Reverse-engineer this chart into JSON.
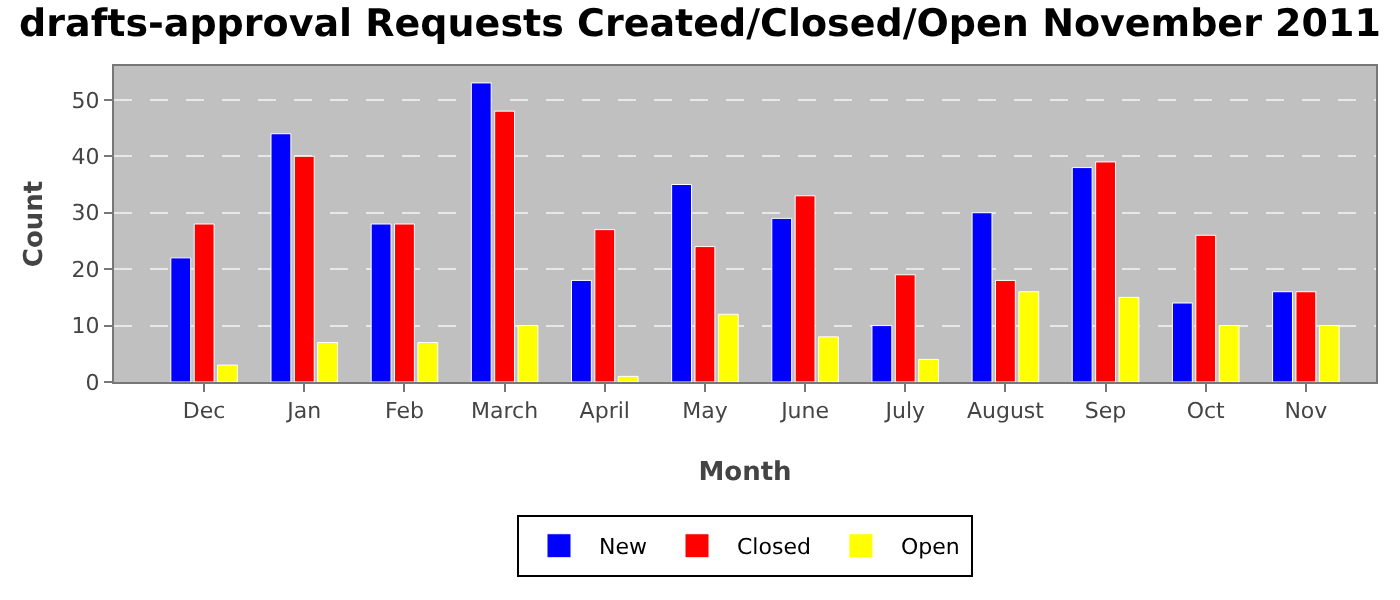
{
  "chart_data": {
    "type": "bar",
    "title": "drafts-approval Requests Created/Closed/Open November 2011",
    "xlabel": "Month",
    "ylabel": "Count",
    "categories": [
      "Dec",
      "Jan",
      "Feb",
      "March",
      "April",
      "May",
      "June",
      "July",
      "August",
      "Sep",
      "Oct",
      "Nov"
    ],
    "series": [
      {
        "name": "New",
        "color": "#0000ff",
        "values": [
          22,
          44,
          28,
          53,
          18,
          35,
          29,
          10,
          30,
          38,
          14,
          16
        ]
      },
      {
        "name": "Closed",
        "color": "#ff0000",
        "values": [
          28,
          40,
          28,
          48,
          27,
          24,
          33,
          19,
          18,
          39,
          26,
          16
        ]
      },
      {
        "name": "Open",
        "color": "#ffff00",
        "values": [
          3,
          7,
          7,
          10,
          1,
          12,
          8,
          4,
          16,
          15,
          10,
          10
        ]
      }
    ],
    "ylim": [
      0,
      56
    ],
    "yticks": [
      0,
      10,
      20,
      30,
      40,
      50
    ],
    "grid": "y",
    "legend": "bottom"
  }
}
